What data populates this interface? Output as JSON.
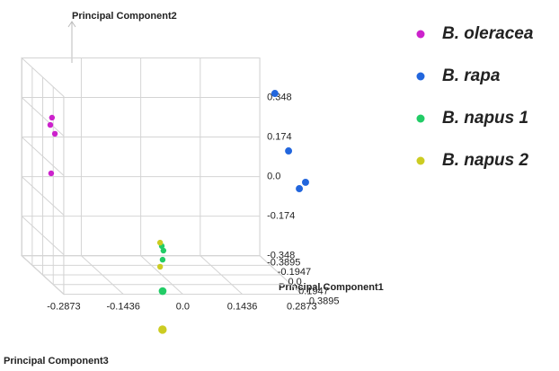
{
  "chart_data": {
    "type": "scatter3d",
    "x_label": "Principal Component1",
    "y_label": "Principal Component2",
    "z_label": "Principal Component3",
    "xlim": [
      -0.3895,
      0.3895
    ],
    "xticks": [
      -0.3895,
      -0.1947,
      {
        "value": 0,
        "label": "0.0"
      },
      0.1947,
      0.3895
    ],
    "ylim": [
      -0.348,
      0.522
    ],
    "yticks": [
      0.348,
      0.174,
      {
        "value": 0,
        "label": "0.0"
      },
      -0.174,
      -0.348
    ],
    "zlim": [
      -0.2873,
      0.2873
    ],
    "zticks": [
      -0.2873,
      -0.1436,
      {
        "value": 0,
        "label": "0.0"
      },
      0.1436,
      0.2873
    ],
    "grid": true,
    "legend": "right",
    "series": [
      {
        "name": "B. oleracea",
        "color": "#cc22cc",
        "x": [
          0,
          0,
          0,
          0
        ],
        "y": [
          0.344,
          0.312,
          0.273,
          0.099
        ],
        "z": [
          -0.265,
          -0.269,
          -0.258,
          -0.267
        ]
      },
      {
        "name": "B. rapa",
        "color": "#2266dd",
        "x": [
          0.2,
          0.2,
          0.2,
          0.2
        ],
        "y": [
          0.494,
          0.241,
          0.103,
          0.075
        ],
        "z": [
          0.247,
          0.28,
          0.321,
          0.306
        ]
      },
      {
        "name": "B. napus 1",
        "color": "#22cc66",
        "x": [
          0,
          0,
          0,
          0.3
        ],
        "y": [
          -0.221,
          -0.241,
          -0.281,
          -0.354
        ],
        "z": [
          0,
          0.004,
          0.002,
          -0.037
        ]
      },
      {
        "name": "B. napus 2",
        "color": "#cccc22",
        "x": [
          0,
          0,
          0.39
        ],
        "y": [
          -0.206,
          -0.312,
          -0.504
        ],
        "z": [
          -0.004,
          -0.004,
          -0.049
        ]
      }
    ]
  }
}
